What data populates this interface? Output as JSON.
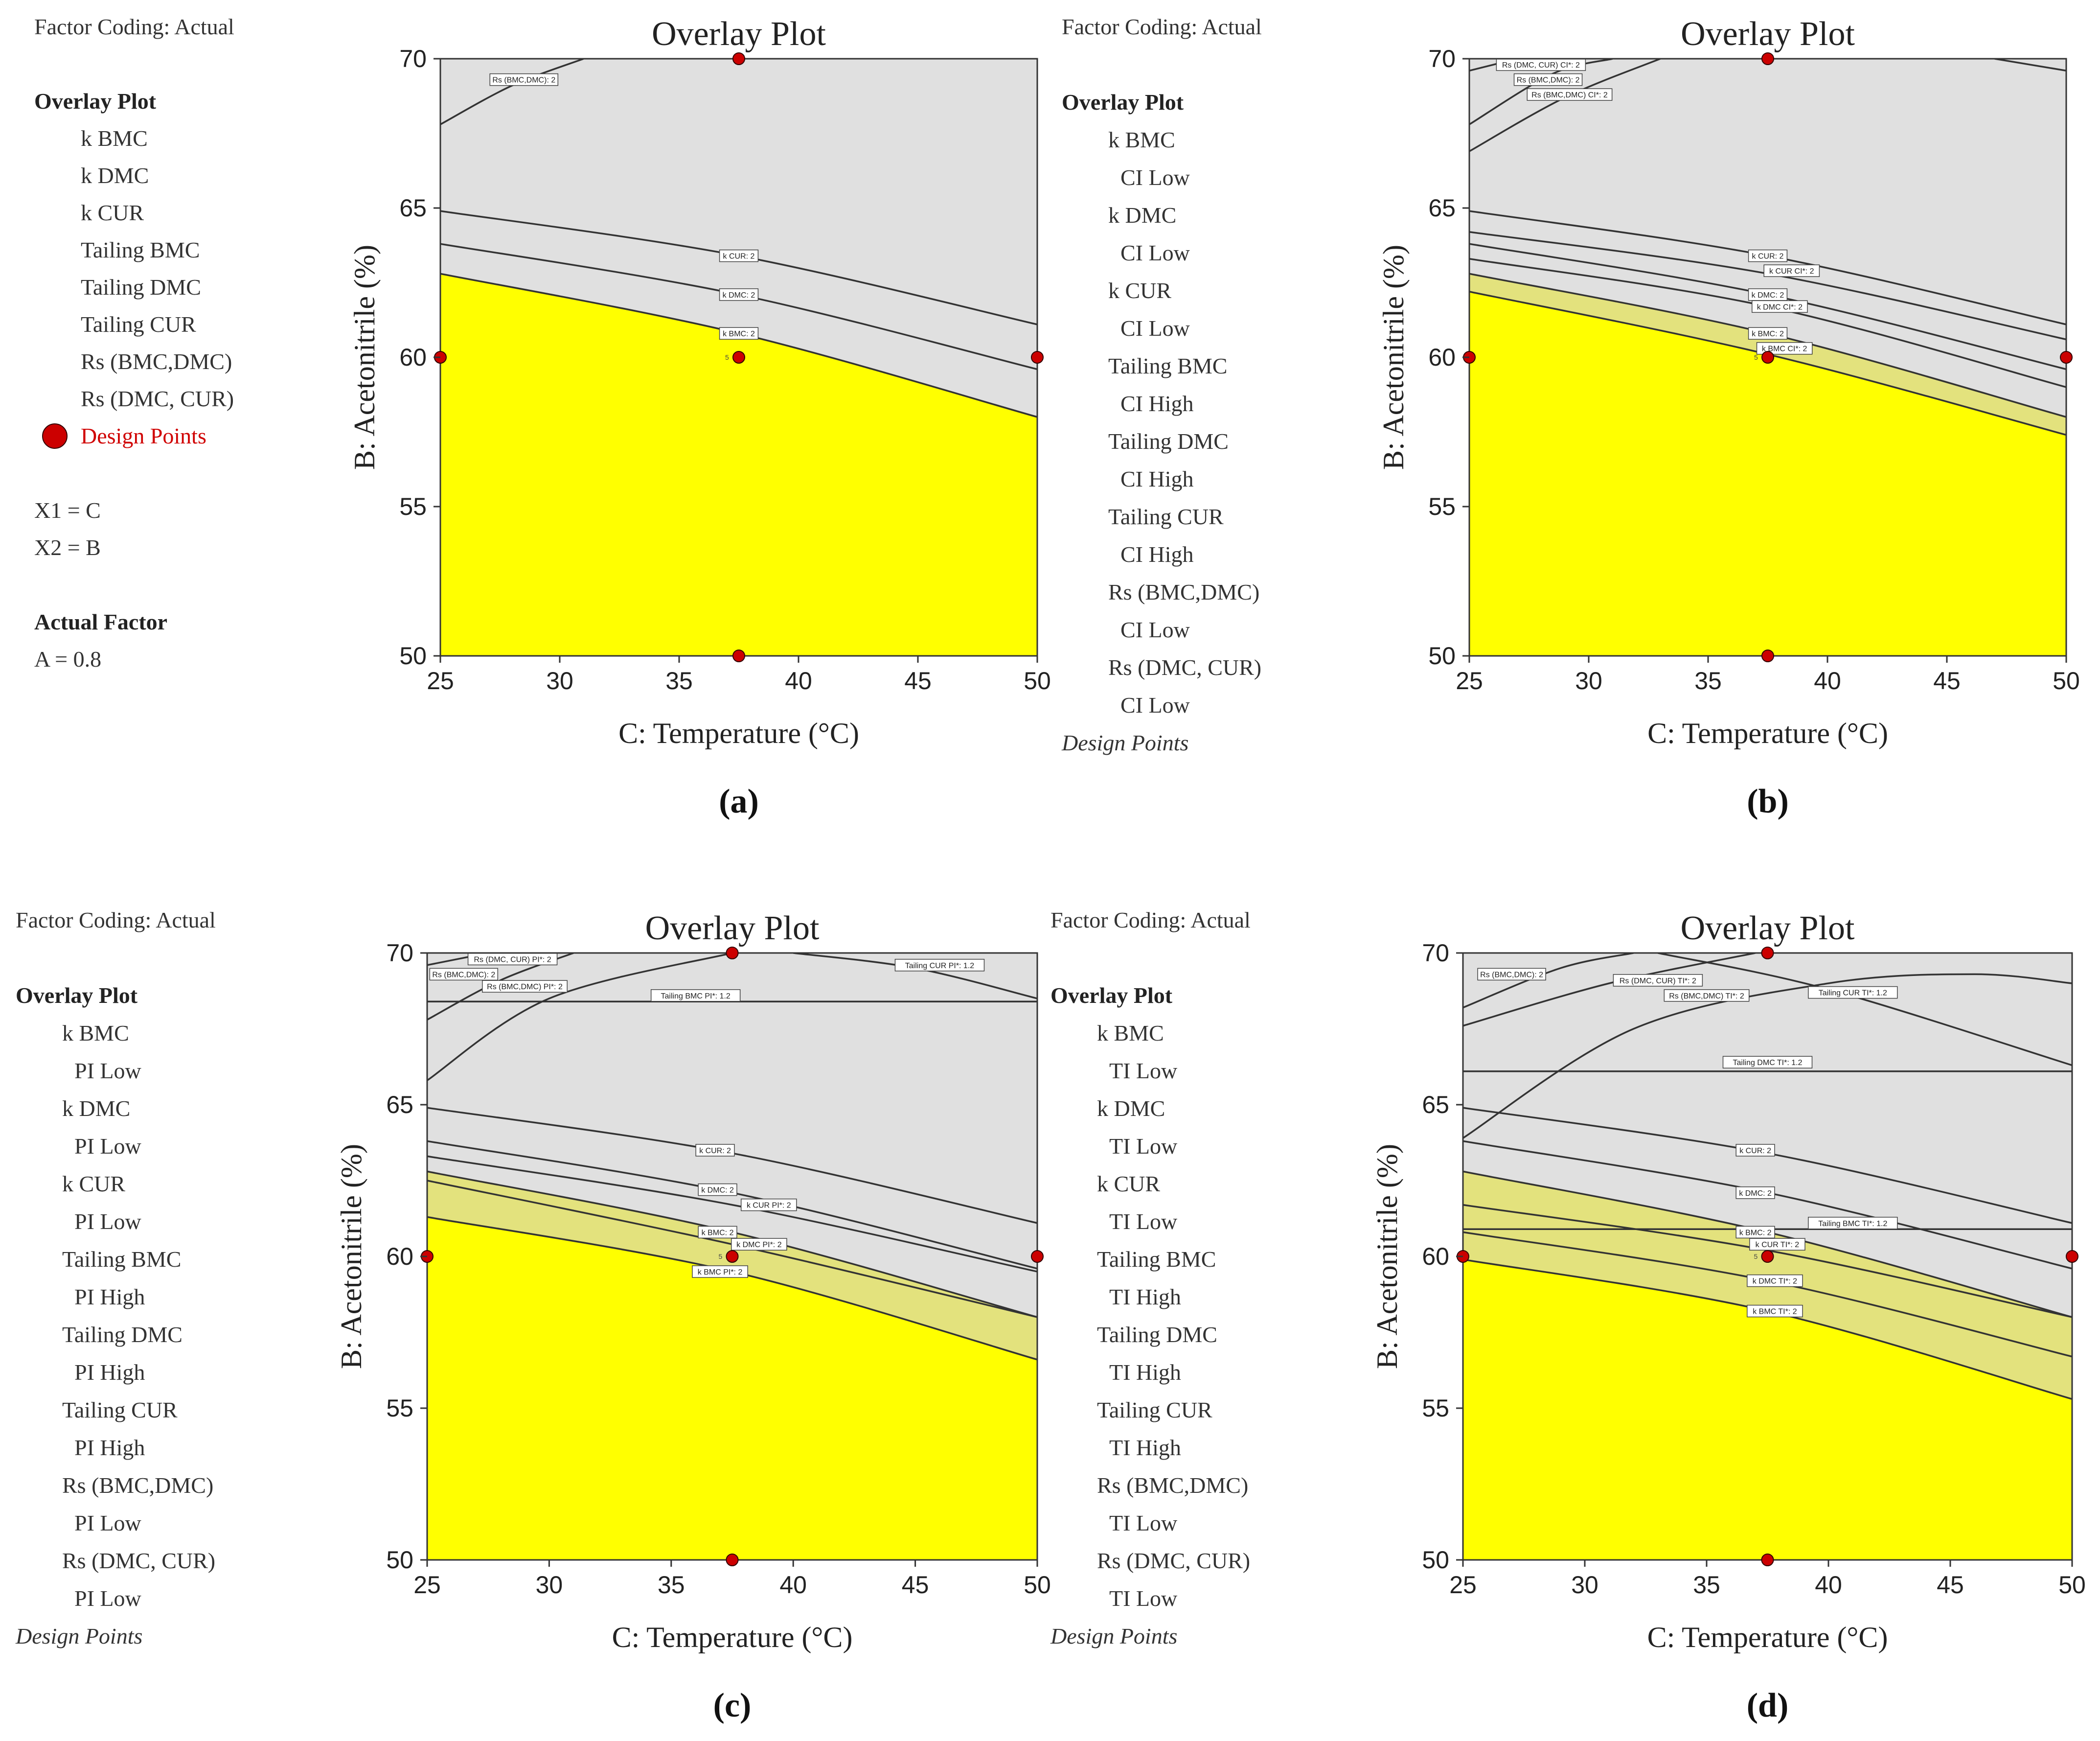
{
  "colors": {
    "infeasible": "#e0e0e0",
    "feasible": "#ffff00",
    "ci_band": "#e3e27d",
    "design_point": "#cc0000",
    "contour": "#333333"
  },
  "chart_data": [
    {
      "type": "contour",
      "panel_label": "(a)",
      "title": "Overlay Plot",
      "xlabel": "C: Temperature (°C)",
      "ylabel": "B: Acetonitrile (%)",
      "xlim": [
        25,
        50
      ],
      "ylim": [
        50,
        70
      ],
      "xticks": [
        "25",
        "30",
        "35",
        "40",
        "45",
        "50"
      ],
      "yticks": [
        "50",
        "55",
        "60",
        "65",
        "70"
      ],
      "legend": {
        "header": "Factor Coding: Actual",
        "section": "Overlay Plot",
        "items": [
          "k BMC",
          "k DMC",
          "k CUR",
          "Tailing BMC",
          "Tailing DMC",
          "Tailing CUR",
          "Rs (BMC,DMC)",
          "Rs (DMC, CUR)"
        ],
        "design_points": "Design Points",
        "extras": [
          "X1 = C",
          "X2 = B"
        ],
        "actual_factor_title": "Actual Factor",
        "actual_factor": "A = 0.8"
      },
      "feasible_boundary": [
        [
          25,
          62.8
        ],
        [
          37.5,
          60.8
        ],
        [
          50,
          58.0
        ]
      ],
      "band_boundary": null,
      "contours": [
        {
          "label": "k CUR: 2",
          "points": [
            [
              25,
              64.9
            ],
            [
              37.5,
              63.4
            ],
            [
              50,
              61.1
            ]
          ],
          "label_at": [
            37.5,
            63.4
          ]
        },
        {
          "label": "k DMC: 2",
          "points": [
            [
              25,
              63.8
            ],
            [
              37.5,
              62.1
            ],
            [
              50,
              59.6
            ]
          ],
          "label_at": [
            37.5,
            62.1
          ]
        },
        {
          "label": "k BMC: 2",
          "points": [
            [
              25,
              62.8
            ],
            [
              37.5,
              60.8
            ],
            [
              50,
              58.0
            ]
          ],
          "label_at": [
            37.5,
            60.8
          ]
        },
        {
          "label": "Rs (BMC,DMC): 2",
          "points": [
            [
              25,
              67.8
            ],
            [
              28,
              69.1
            ],
            [
              31,
              70
            ]
          ],
          "label_at": [
            28.5,
            69.3
          ]
        }
      ],
      "design_points": [
        [
          25,
          60
        ],
        [
          37.5,
          60
        ],
        [
          50,
          60
        ],
        [
          37.5,
          70
        ],
        [
          37.5,
          50
        ]
      ],
      "center_label": "5"
    },
    {
      "type": "contour",
      "panel_label": "(b)",
      "title": "Overlay Plot",
      "xlabel": "C: Temperature (°C)",
      "ylabel": "B: Acetonitrile (%)",
      "xlim": [
        25,
        50
      ],
      "ylim": [
        50,
        70
      ],
      "xticks": [
        "25",
        "30",
        "35",
        "40",
        "45",
        "50"
      ],
      "yticks": [
        "50",
        "55",
        "60",
        "65",
        "70"
      ],
      "legend": {
        "header": "Factor Coding: Actual",
        "section": "Overlay Plot",
        "items": [
          "k BMC",
          "CI Low",
          "k DMC",
          "CI Low",
          "k CUR",
          "CI Low",
          "Tailing BMC",
          "CI High",
          "Tailing DMC",
          "CI High",
          "Tailing CUR",
          "CI High",
          "Rs (BMC,DMC)",
          "CI Low",
          "Rs (DMC, CUR)",
          "CI Low"
        ],
        "design_points": "Design Points"
      },
      "feasible_boundary": [
        [
          25,
          62.2
        ],
        [
          37.5,
          60.1
        ],
        [
          50,
          57.4
        ]
      ],
      "band_boundary": [
        [
          25,
          62.8
        ],
        [
          37.5,
          60.8
        ],
        [
          50,
          58.0
        ]
      ],
      "contours": [
        {
          "label": "k CUR: 2",
          "points": [
            [
              25,
              64.9
            ],
            [
              37.5,
              63.4
            ],
            [
              50,
              61.1
            ]
          ],
          "label_at": [
            37.5,
            63.4
          ]
        },
        {
          "label": "k CUR CI*: 2",
          "points": [
            [
              25,
              64.2
            ],
            [
              37.5,
              62.8
            ],
            [
              50,
              60.6
            ]
          ],
          "label_at": [
            38.5,
            62.9
          ]
        },
        {
          "label": "k DMC: 2",
          "points": [
            [
              25,
              63.8
            ],
            [
              37.5,
              62.1
            ],
            [
              50,
              59.6
            ]
          ],
          "label_at": [
            37.5,
            62.1
          ]
        },
        {
          "label": "k DMC CI*: 2",
          "points": [
            [
              25,
              63.3
            ],
            [
              37.5,
              61.7
            ],
            [
              50,
              59.0
            ]
          ],
          "label_at": [
            38.0,
            61.7
          ]
        },
        {
          "label": "k BMC: 2",
          "points": [
            [
              25,
              62.8
            ],
            [
              37.5,
              60.8
            ],
            [
              50,
              58.0
            ]
          ],
          "label_at": [
            37.5,
            60.8
          ]
        },
        {
          "label": "k BMC CI*: 2",
          "points": [
            [
              25,
              62.2
            ],
            [
              37.5,
              60.1
            ],
            [
              50,
              57.4
            ]
          ],
          "label_at": [
            38.2,
            60.3
          ]
        },
        {
          "label": "Rs (DMC, CUR) CI*: 2",
          "points": [
            [
              25,
              69.6
            ],
            [
              27,
              70.0
            ]
          ],
          "label_at": [
            28.0,
            69.8
          ]
        },
        {
          "label": "Rs (BMC,DMC): 2",
          "points": [
            [
              25,
              67.8
            ],
            [
              28.5,
              69.5
            ],
            [
              31,
              70
            ]
          ],
          "label_at": [
            28.3,
            69.3
          ]
        },
        {
          "label": "Rs (BMC,DMC) CI*: 2",
          "points": [
            [
              25,
              66.9
            ],
            [
              29,
              68.7
            ],
            [
              33,
              70
            ]
          ],
          "label_at": [
            29.2,
            68.8
          ]
        },
        {
          "label": "",
          "points": [
            [
              47,
              70
            ],
            [
              50,
              69.6
            ]
          ],
          "label_at": null
        }
      ],
      "design_points": [
        [
          25,
          60
        ],
        [
          37.5,
          60
        ],
        [
          50,
          60
        ],
        [
          37.5,
          70
        ],
        [
          37.5,
          50
        ]
      ],
      "center_label": "5"
    },
    {
      "type": "contour",
      "panel_label": "(c)",
      "title": "Overlay Plot",
      "xlabel": "C: Temperature (°C)",
      "ylabel": "B: Acetonitrile (%)",
      "xlim": [
        25,
        50
      ],
      "ylim": [
        50,
        70
      ],
      "xticks": [
        "25",
        "30",
        "35",
        "40",
        "45",
        "50"
      ],
      "yticks": [
        "50",
        "55",
        "60",
        "65",
        "70"
      ],
      "legend": {
        "header": "Factor Coding: Actual",
        "section": "Overlay Plot",
        "items": [
          "k BMC",
          "PI Low",
          "k DMC",
          "PI Low",
          "k CUR",
          "PI Low",
          "Tailing BMC",
          "PI High",
          "Tailing DMC",
          "PI High",
          "Tailing CUR",
          "PI High",
          "Rs (BMC,DMC)",
          "PI Low",
          "Rs (DMC, CUR)",
          "PI Low"
        ],
        "design_points": "Design Points"
      },
      "feasible_boundary": [
        [
          25,
          61.3
        ],
        [
          37.5,
          59.5
        ],
        [
          50,
          56.6
        ]
      ],
      "band_boundary": [
        [
          25,
          62.8
        ],
        [
          37.5,
          60.8
        ],
        [
          50,
          58.0
        ]
      ],
      "contours": [
        {
          "label": "k CUR: 2",
          "points": [
            [
              25,
              64.9
            ],
            [
              37.5,
              63.4
            ],
            [
              50,
              61.1
            ]
          ],
          "label_at": [
            36.8,
            63.5
          ]
        },
        {
          "label": "k CUR PI*: 2",
          "points": [
            [
              25,
              63.3
            ],
            [
              37.5,
              61.7
            ],
            [
              50,
              59.5
            ]
          ],
          "label_at": [
            39.0,
            61.7
          ]
        },
        {
          "label": "k DMC: 2",
          "points": [
            [
              25,
              63.8
            ],
            [
              37.5,
              62.1
            ],
            [
              50,
              59.6
            ]
          ],
          "label_at": [
            36.9,
            62.2
          ]
        },
        {
          "label": "k DMC PI*: 2",
          "points": [
            [
              25,
              62.5
            ],
            [
              37.5,
              60.4
            ],
            [
              50,
              58.0
            ]
          ],
          "label_at": [
            38.6,
            60.4
          ]
        },
        {
          "label": "k BMC: 2",
          "points": [
            [
              25,
              62.8
            ],
            [
              37.5,
              60.8
            ],
            [
              50,
              58.0
            ]
          ],
          "label_at": [
            36.9,
            60.8
          ]
        },
        {
          "label": "k BMC PI*: 2",
          "points": [
            [
              25,
              61.3
            ],
            [
              37.5,
              59.5
            ],
            [
              50,
              56.6
            ]
          ],
          "label_at": [
            37.0,
            59.5
          ]
        },
        {
          "label": "Tailing BMC PI*: 1.2",
          "points": [
            [
              25,
              68.4
            ],
            [
              50,
              68.4
            ]
          ],
          "label_at": [
            36.0,
            68.6
          ]
        },
        {
          "label": "Tailing CUR PI*: 1.2",
          "points": [
            [
              40,
              70
            ],
            [
              45,
              69.5
            ],
            [
              50,
              68.5
            ]
          ],
          "label_at": [
            46.0,
            69.6
          ]
        },
        {
          "label": "Rs (DMC, CUR) PI*: 2",
          "points": [
            [
              25,
              69.6
            ],
            [
              27.5,
              70.0
            ]
          ],
          "label_at": [
            28.5,
            69.8
          ]
        },
        {
          "label": "Rs (BMC,DMC): 2",
          "points": [
            [
              25,
              67.8
            ],
            [
              28,
              69.1
            ],
            [
              31,
              70
            ]
          ],
          "label_at": [
            26.5,
            69.3
          ]
        },
        {
          "label": "Rs (BMC,DMC) PI*: 2",
          "points": [
            [
              25,
              65.8
            ],
            [
              30,
              68.5
            ],
            [
              37.5,
              70
            ]
          ],
          "label_at": [
            29.0,
            68.9
          ]
        }
      ],
      "design_points": [
        [
          25,
          60
        ],
        [
          37.5,
          60
        ],
        [
          50,
          60
        ],
        [
          37.5,
          70
        ],
        [
          37.5,
          50
        ]
      ],
      "center_label": "5"
    },
    {
      "type": "contour",
      "panel_label": "(d)",
      "title": "Overlay Plot",
      "xlabel": "C: Temperature (°C)",
      "ylabel": "B: Acetonitrile (%)",
      "xlim": [
        25,
        50
      ],
      "ylim": [
        50,
        70
      ],
      "xticks": [
        "25",
        "30",
        "35",
        "40",
        "45",
        "50"
      ],
      "yticks": [
        "50",
        "55",
        "60",
        "65",
        "70"
      ],
      "legend": {
        "header": "Factor Coding: Actual",
        "section": "Overlay Plot",
        "items": [
          "k BMC",
          "TI Low",
          "k DMC",
          "TI Low",
          "k CUR",
          "TI Low",
          "Tailing BMC",
          "TI High",
          "Tailing DMC",
          "TI High",
          "Tailing CUR",
          "TI High",
          "Rs (BMC,DMC)",
          "TI Low",
          "Rs (DMC, CUR)",
          "TI Low"
        ],
        "design_points": "Design Points"
      },
      "feasible_boundary": [
        [
          25,
          59.9
        ],
        [
          37.5,
          58.2
        ],
        [
          50,
          55.3
        ]
      ],
      "band_boundary": [
        [
          25,
          62.8
        ],
        [
          37.5,
          60.8
        ],
        [
          50,
          58.0
        ]
      ],
      "contours": [
        {
          "label": "k CUR: 2",
          "points": [
            [
              25,
              64.9
            ],
            [
              37.5,
              63.4
            ],
            [
              50,
              61.1
            ]
          ],
          "label_at": [
            37.0,
            63.5
          ]
        },
        {
          "label": "k DMC: 2",
          "points": [
            [
              25,
              63.8
            ],
            [
              37.5,
              62.1
            ],
            [
              50,
              59.6
            ]
          ],
          "label_at": [
            37.0,
            62.1
          ]
        },
        {
          "label": "k BMC: 2",
          "points": [
            [
              25,
              62.8
            ],
            [
              37.5,
              60.8
            ],
            [
              50,
              58.0
            ]
          ],
          "label_at": [
            37.0,
            60.8
          ]
        },
        {
          "label": "k CUR TI*: 2",
          "points": [
            [
              25,
              61.7
            ],
            [
              37.5,
              60.2
            ],
            [
              50,
              58.0
            ]
          ],
          "label_at": [
            37.9,
            60.4
          ]
        },
        {
          "label": "k DMC TI*: 2",
          "points": [
            [
              25,
              60.8
            ],
            [
              37.5,
              59.2
            ],
            [
              50,
              56.7
            ]
          ],
          "label_at": [
            37.8,
            59.2
          ]
        },
        {
          "label": "k BMC TI*: 2",
          "points": [
            [
              25,
              59.9
            ],
            [
              37.5,
              58.2
            ],
            [
              50,
              55.3
            ]
          ],
          "label_at": [
            37.8,
            58.2
          ]
        },
        {
          "label": "Tailing BMC TI*: 1.2",
          "points": [
            [
              25,
              60.9
            ],
            [
              50,
              60.9
            ]
          ],
          "label_at": [
            41.0,
            61.1
          ]
        },
        {
          "label": "Tailing DMC TI*: 1.2",
          "points": [
            [
              25,
              66.1
            ],
            [
              50,
              66.1
            ]
          ],
          "label_at": [
            37.5,
            66.4
          ]
        },
        {
          "label": "Tailing CUR TI*: 1.2",
          "points": [
            [
              33,
              70
            ],
            [
              40,
              68.8
            ],
            [
              50,
              66.3
            ]
          ],
          "label_at": [
            41.0,
            68.7
          ]
        },
        {
          "label": "Rs (DMC, CUR) TI*: 2",
          "points": [
            [
              25,
              67.6
            ],
            [
              31,
              69.0
            ],
            [
              37,
              70
            ]
          ],
          "label_at": [
            33.0,
            69.1
          ]
        },
        {
          "label": "Rs (BMC,DMC): 2",
          "points": [
            [
              25,
              68.2
            ],
            [
              29,
              69.5
            ],
            [
              32,
              70
            ]
          ],
          "label_at": [
            27.0,
            69.3
          ]
        },
        {
          "label": "Rs (BMC,DMC) TI*: 2",
          "points": [
            [
              25,
              63.9
            ],
            [
              32,
              67.5
            ],
            [
              40,
              69.0
            ],
            [
              46,
              69.3
            ],
            [
              50,
              69.0
            ]
          ],
          "label_at": [
            35.0,
            68.6
          ]
        }
      ],
      "design_points": [
        [
          25,
          60
        ],
        [
          37.5,
          60
        ],
        [
          50,
          60
        ],
        [
          37.5,
          70
        ],
        [
          37.5,
          50
        ]
      ],
      "center_label": "5"
    }
  ]
}
